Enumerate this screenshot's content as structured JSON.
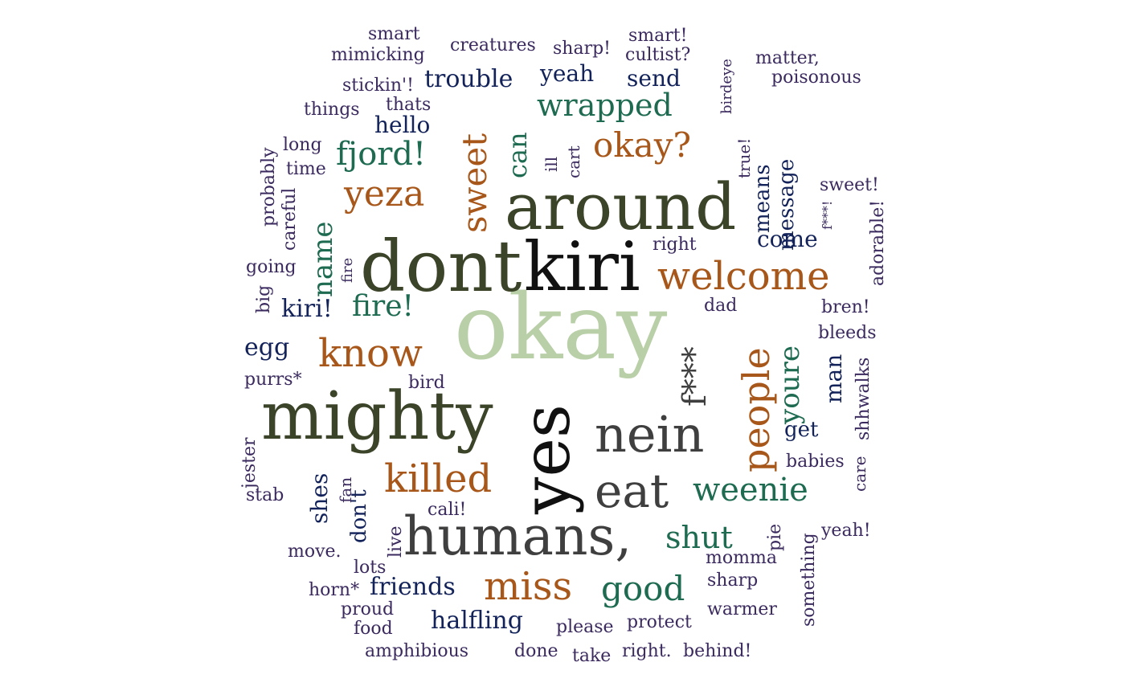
{
  "palette": {
    "olive": "#3b4428",
    "sage": "#b9cfa8",
    "black": "#111111",
    "gray": "#3f3f3f",
    "brown": "#a8571a",
    "teal": "#1e6b52",
    "navy": "#13235a",
    "purple": "#3a2a5e"
  },
  "words": [
    {
      "text": "okay",
      "weight": 10,
      "color": "sage"
    },
    {
      "text": "dont",
      "weight": 9,
      "color": "olive"
    },
    {
      "text": "kiri",
      "weight": 9,
      "color": "black"
    },
    {
      "text": "around",
      "weight": 9,
      "color": "olive"
    },
    {
      "text": "mighty",
      "weight": 9,
      "color": "olive"
    },
    {
      "text": "yes",
      "weight": 9,
      "color": "black"
    },
    {
      "text": "humans,",
      "weight": 8,
      "color": "gray"
    },
    {
      "text": "nein",
      "weight": 7,
      "color": "gray"
    },
    {
      "text": "eat",
      "weight": 7,
      "color": "gray"
    },
    {
      "text": "welcome",
      "weight": 6,
      "color": "brown"
    },
    {
      "text": "people",
      "weight": 6,
      "color": "brown"
    },
    {
      "text": "f***",
      "weight": 6,
      "color": "gray"
    },
    {
      "text": "killed",
      "weight": 6,
      "color": "brown"
    },
    {
      "text": "know",
      "weight": 6,
      "color": "brown"
    },
    {
      "text": "miss",
      "weight": 6,
      "color": "brown"
    },
    {
      "text": "yeza",
      "weight": 5,
      "color": "brown"
    },
    {
      "text": "okay?",
      "weight": 5,
      "color": "brown"
    },
    {
      "text": "sweet",
      "weight": 5,
      "color": "brown"
    },
    {
      "text": "good",
      "weight": 5,
      "color": "teal"
    },
    {
      "text": "weenie",
      "weight": 5,
      "color": "teal"
    },
    {
      "text": "shut",
      "weight": 5,
      "color": "teal"
    },
    {
      "text": "wrapped",
      "weight": 5,
      "color": "teal"
    },
    {
      "text": "fjord!",
      "weight": 5,
      "color": "teal"
    },
    {
      "text": "fire!",
      "weight": 4,
      "color": "teal"
    },
    {
      "text": "youre",
      "weight": 4,
      "color": "teal"
    },
    {
      "text": "name",
      "weight": 4,
      "color": "teal"
    },
    {
      "text": "can",
      "weight": 4,
      "color": "teal"
    },
    {
      "text": "trouble",
      "weight": 4,
      "color": "navy"
    },
    {
      "text": "halfling",
      "weight": 4,
      "color": "navy"
    },
    {
      "text": "friends",
      "weight": 4,
      "color": "navy"
    },
    {
      "text": "yeah",
      "weight": 3,
      "color": "navy"
    },
    {
      "text": "send",
      "weight": 3,
      "color": "navy"
    },
    {
      "text": "hello",
      "weight": 3,
      "color": "navy"
    },
    {
      "text": "means",
      "weight": 3,
      "color": "navy"
    },
    {
      "text": "message",
      "weight": 3,
      "color": "navy"
    },
    {
      "text": "come",
      "weight": 3,
      "color": "navy"
    },
    {
      "text": "kiri!",
      "weight": 3,
      "color": "navy"
    },
    {
      "text": "egg",
      "weight": 3,
      "color": "navy"
    },
    {
      "text": "man",
      "weight": 3,
      "color": "navy"
    },
    {
      "text": "get",
      "weight": 3,
      "color": "navy"
    },
    {
      "text": "shes",
      "weight": 3,
      "color": "navy"
    },
    {
      "text": "don't",
      "weight": 3,
      "color": "navy"
    },
    {
      "text": "smart",
      "weight": 2,
      "color": "purple"
    },
    {
      "text": "mimicking",
      "weight": 2,
      "color": "purple"
    },
    {
      "text": "creatures",
      "weight": 2,
      "color": "purple"
    },
    {
      "text": "sharp!",
      "weight": 2,
      "color": "purple"
    },
    {
      "text": "smart!",
      "weight": 2,
      "color": "purple"
    },
    {
      "text": "cultist?",
      "weight": 2,
      "color": "purple"
    },
    {
      "text": "birdeye",
      "weight": 1,
      "color": "purple"
    },
    {
      "text": "matter,",
      "weight": 2,
      "color": "purple"
    },
    {
      "text": "poisonous",
      "weight": 2,
      "color": "purple"
    },
    {
      "text": "stickin'!",
      "weight": 2,
      "color": "purple"
    },
    {
      "text": "things",
      "weight": 2,
      "color": "purple"
    },
    {
      "text": "thats",
      "weight": 2,
      "color": "purple"
    },
    {
      "text": "long",
      "weight": 2,
      "color": "purple"
    },
    {
      "text": "probably",
      "weight": 2,
      "color": "purple"
    },
    {
      "text": "time",
      "weight": 2,
      "color": "purple"
    },
    {
      "text": "careful",
      "weight": 2,
      "color": "purple"
    },
    {
      "text": "ill",
      "weight": 2,
      "color": "purple"
    },
    {
      "text": "cart",
      "weight": 2,
      "color": "purple"
    },
    {
      "text": "true!",
      "weight": 2,
      "color": "purple"
    },
    {
      "text": "sweet!",
      "weight": 2,
      "color": "purple"
    },
    {
      "text": "f***!",
      "weight": 1,
      "color": "purple"
    },
    {
      "text": "adorable!",
      "weight": 2,
      "color": "purple"
    },
    {
      "text": "right",
      "weight": 2,
      "color": "purple"
    },
    {
      "text": "going",
      "weight": 2,
      "color": "purple"
    },
    {
      "text": "fire",
      "weight": 1,
      "color": "purple"
    },
    {
      "text": "big",
      "weight": 2,
      "color": "purple"
    },
    {
      "text": "dad",
      "weight": 2,
      "color": "purple"
    },
    {
      "text": "bren!",
      "weight": 2,
      "color": "purple"
    },
    {
      "text": "bleeds",
      "weight": 2,
      "color": "purple"
    },
    {
      "text": "purrs*",
      "weight": 2,
      "color": "purple"
    },
    {
      "text": "bird",
      "weight": 2,
      "color": "purple"
    },
    {
      "text": "shhwalks",
      "weight": 2,
      "color": "purple"
    },
    {
      "text": "jester",
      "weight": 2,
      "color": "purple"
    },
    {
      "text": "care",
      "weight": 2,
      "color": "purple"
    },
    {
      "text": "babies",
      "weight": 2,
      "color": "purple"
    },
    {
      "text": "fan",
      "weight": 2,
      "color": "purple"
    },
    {
      "text": "stab",
      "weight": 2,
      "color": "purple"
    },
    {
      "text": "cali!",
      "weight": 2,
      "color": "purple"
    },
    {
      "text": "live",
      "weight": 2,
      "color": "purple"
    },
    {
      "text": "pie",
      "weight": 2,
      "color": "purple"
    },
    {
      "text": "something",
      "weight": 2,
      "color": "purple"
    },
    {
      "text": "yeah!",
      "weight": 2,
      "color": "purple"
    },
    {
      "text": "move.",
      "weight": 2,
      "color": "purple"
    },
    {
      "text": "momma",
      "weight": 2,
      "color": "purple"
    },
    {
      "text": "lots",
      "weight": 2,
      "color": "purple"
    },
    {
      "text": "sharp",
      "weight": 2,
      "color": "purple"
    },
    {
      "text": "horn*",
      "weight": 2,
      "color": "purple"
    },
    {
      "text": "proud",
      "weight": 2,
      "color": "purple"
    },
    {
      "text": "warmer",
      "weight": 2,
      "color": "purple"
    },
    {
      "text": "food",
      "weight": 2,
      "color": "purple"
    },
    {
      "text": "please",
      "weight": 2,
      "color": "purple"
    },
    {
      "text": "protect",
      "weight": 2,
      "color": "purple"
    },
    {
      "text": "amphibious",
      "weight": 2,
      "color": "purple"
    },
    {
      "text": "done",
      "weight": 2,
      "color": "purple"
    },
    {
      "text": "take",
      "weight": 2,
      "color": "purple"
    },
    {
      "text": "right.",
      "weight": 2,
      "color": "purple"
    },
    {
      "text": "behind!",
      "weight": 2,
      "color": "purple"
    }
  ]
}
